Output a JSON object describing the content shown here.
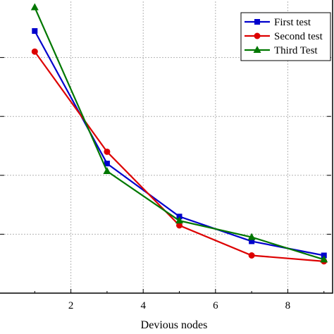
{
  "chart_data": {
    "type": "line",
    "title": "",
    "xlabel": "Devious nodes",
    "ylabel": "",
    "xlim": [
      0,
      9.2
    ],
    "ylim": [
      0,
      5
    ],
    "x_ticks": [
      2,
      4,
      6,
      8
    ],
    "y_ticks": [
      1,
      2,
      3,
      4
    ],
    "grid": true,
    "legend_position": "top-right",
    "series": [
      {
        "name": "First test",
        "color": "#0000cc",
        "marker": "square",
        "x": [
          1,
          3,
          5,
          7,
          9
        ],
        "y": [
          4.45,
          2.2,
          1.3,
          0.88,
          0.64
        ]
      },
      {
        "name": "Second test",
        "color": "#dd0000",
        "marker": "circle",
        "x": [
          1,
          3,
          5,
          7,
          9
        ],
        "y": [
          4.1,
          2.4,
          1.15,
          0.64,
          0.54
        ]
      },
      {
        "name": "Third Test",
        "color": "#007700",
        "marker": "triangle",
        "x": [
          1,
          3,
          5,
          7,
          9
        ],
        "y": [
          4.85,
          2.07,
          1.23,
          0.95,
          0.57
        ]
      }
    ]
  }
}
